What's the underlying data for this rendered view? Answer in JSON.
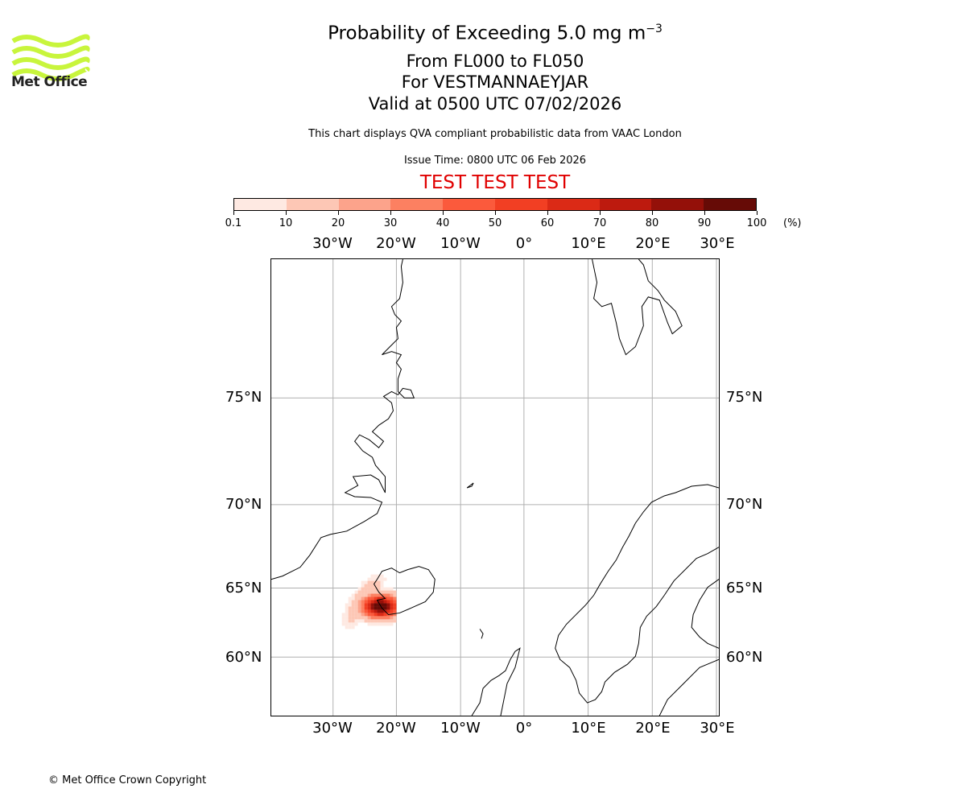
{
  "logo": {
    "text": "Met Office",
    "color": "#c8f53c"
  },
  "title": {
    "line1": "Probability of Exceeding 5.0 mg m",
    "line1_sup": "−3",
    "line2": "From FL000 to FL050",
    "line3": "For VESTMANNAEYJAR",
    "line4": "Valid at 0500 UTC 07/02/2026"
  },
  "subtitle": "This chart displays QVA compliant probabilistic data from VAAC London",
  "issue_time": "Issue Time: 0800 UTC 06 Feb 2026",
  "test_banner": "TEST TEST TEST",
  "colorbar": {
    "ticks": [
      "0.1",
      "10",
      "20",
      "30",
      "40",
      "50",
      "60",
      "70",
      "80",
      "90",
      "100"
    ],
    "unit": "(%)",
    "colors": [
      "#fee9e2",
      "#fdc7b5",
      "#fca38b",
      "#fc8061",
      "#fb5a3c",
      "#f23f23",
      "#db2a16",
      "#bd1a0e",
      "#941009",
      "#660b06"
    ]
  },
  "map": {
    "lon_labels": [
      "30°W",
      "20°W",
      "10°W",
      "0°",
      "10°E",
      "20°E",
      "30°E"
    ],
    "lat_labels": [
      "75°N",
      "70°N",
      "65°N",
      "60°N"
    ]
  },
  "copyright": "© Met Office Crown Copyright"
}
